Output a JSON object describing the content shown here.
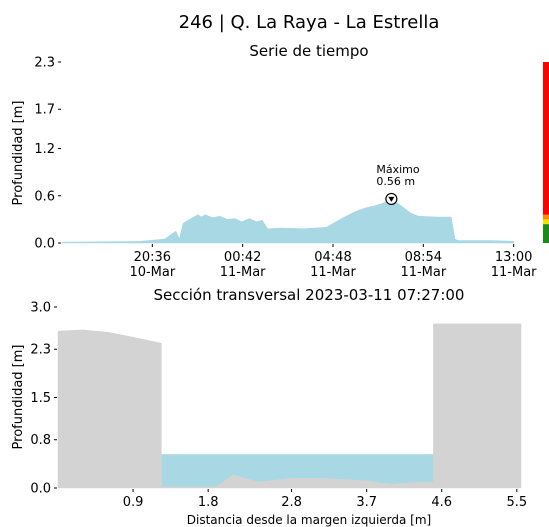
{
  "figure": {
    "title": "246 | Q. La Raya - La Estrella"
  },
  "chart_data": [
    {
      "type": "area",
      "title": "Serie de tiempo",
      "xlabel": "",
      "ylabel": "Profundidad [m]",
      "xlim": [
        "2023-03-10 16:30",
        "2023-03-11 13:20"
      ],
      "ylim": [
        0,
        2.3
      ],
      "grid": false,
      "x_ticks": [
        {
          "value": "2023-03-10 20:36",
          "label": "20:36\n10-Mar"
        },
        {
          "value": "2023-03-11 00:42",
          "label": "00:42\n11-Mar"
        },
        {
          "value": "2023-03-11 04:48",
          "label": "04:48\n11-Mar"
        },
        {
          "value": "2023-03-11 08:54",
          "label": "08:54\n11-Mar"
        },
        {
          "value": "2023-03-11 13:00",
          "label": "13:00\n11-Mar"
        }
      ],
      "y_ticks": [
        0.0,
        0.6,
        1.2,
        1.7,
        2.3
      ],
      "y_tick_labels": [
        "0.0",
        "0.6",
        "1.2",
        "1.7",
        "2.3"
      ],
      "series": [
        {
          "color": "#a8d8e4",
          "x": [
            "2023-03-10 16:30",
            "2023-03-10 20:00",
            "2023-03-10 21:10",
            "2023-03-10 21:40",
            "2023-03-10 21:50",
            "2023-03-10 22:00",
            "2023-03-10 22:10",
            "2023-03-10 22:40",
            "2023-03-10 22:50",
            "2023-03-10 23:00",
            "2023-03-10 23:20",
            "2023-03-10 23:40",
            "2023-03-11 00:00",
            "2023-03-11 00:20",
            "2023-03-11 00:40",
            "2023-03-11 01:00",
            "2023-03-11 01:20",
            "2023-03-11 01:35",
            "2023-03-11 01:50",
            "2023-03-11 02:30",
            "2023-03-11 03:30",
            "2023-03-11 04:30",
            "2023-03-11 05:00",
            "2023-03-11 05:20",
            "2023-03-11 05:40",
            "2023-03-11 06:00",
            "2023-03-11 06:20",
            "2023-03-11 06:40",
            "2023-03-11 07:00",
            "2023-03-11 07:20",
            "2023-03-11 07:27",
            "2023-03-11 07:40",
            "2023-03-11 08:00",
            "2023-03-11 08:20",
            "2023-03-11 08:40",
            "2023-03-11 09:30",
            "2023-03-11 10:10",
            "2023-03-11 10:20",
            "2023-03-11 10:30",
            "2023-03-11 11:00",
            "2023-03-11 12:00",
            "2023-03-11 13:00"
          ],
          "y": [
            0.01,
            0.02,
            0.05,
            0.15,
            0.05,
            0.25,
            0.28,
            0.36,
            0.33,
            0.36,
            0.32,
            0.34,
            0.3,
            0.31,
            0.27,
            0.31,
            0.27,
            0.29,
            0.18,
            0.19,
            0.18,
            0.2,
            0.28,
            0.33,
            0.38,
            0.42,
            0.45,
            0.47,
            0.5,
            0.54,
            0.56,
            0.52,
            0.45,
            0.38,
            0.34,
            0.33,
            0.33,
            0.05,
            0.03,
            0.03,
            0.03,
            0.02
          ]
        }
      ],
      "annotations": [
        {
          "x": "2023-03-11 07:27",
          "y": 0.56,
          "text": "Máximo\n0.56 m"
        }
      ],
      "alert_bar": [
        {
          "from": 0,
          "to": 0.24,
          "color": "#1a8a1a"
        },
        {
          "from": 0.24,
          "to": 0.3,
          "color": "#f2e200"
        },
        {
          "from": 0.3,
          "to": 0.36,
          "color": "#ff8c00"
        },
        {
          "from": 0.36,
          "to": 2.3,
          "color": "#ff0000"
        }
      ]
    },
    {
      "type": "area",
      "title": "Sección transversal 2023-03-11 07:27:00",
      "xlabel": "Distancia desde la margen izquierda [m]",
      "ylabel": "Profundidad [m]",
      "xlim": [
        0,
        5.55
      ],
      "ylim": [
        0,
        3.0
      ],
      "grid": false,
      "x_ticks": [
        0.9,
        1.8,
        2.8,
        3.7,
        4.6,
        5.5
      ],
      "x_tick_labels": [
        "0.9",
        "1.8",
        "2.8",
        "3.7",
        "4.6",
        "5.5"
      ],
      "y_ticks": [
        0.0,
        0.8,
        1.5,
        2.3,
        3.0
      ],
      "y_tick_labels": [
        "0.0",
        "0.8",
        "1.5",
        "2.3",
        "3.0"
      ],
      "water_level": 0.56,
      "water_extent": [
        1.24,
        4.5
      ],
      "water_color": "#a8d8e4",
      "terrain_color": "#d3d3d3",
      "terrain": {
        "x": [
          0,
          0.3,
          0.6,
          0.9,
          1.24,
          1.24,
          1.5,
          1.9,
          2.1,
          2.4,
          2.8,
          3.2,
          3.7,
          4.0,
          4.3,
          4.5,
          4.5,
          5.55
        ],
        "y": [
          2.6,
          2.62,
          2.58,
          2.5,
          2.4,
          0.02,
          0.02,
          0.02,
          0.22,
          0.1,
          0.16,
          0.16,
          0.12,
          0.06,
          0.1,
          0.1,
          2.72,
          2.72
        ]
      }
    }
  ]
}
